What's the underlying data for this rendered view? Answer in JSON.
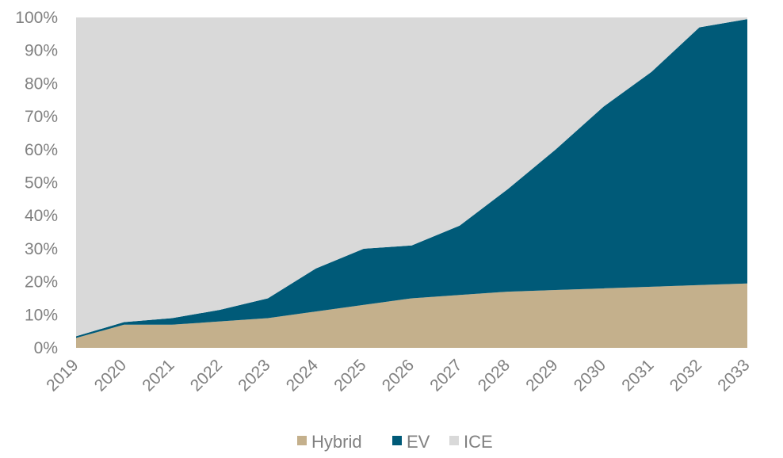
{
  "chart_data": {
    "type": "area",
    "stacked": true,
    "categories": [
      "2019",
      "2020",
      "2021",
      "2022",
      "2023",
      "2024",
      "2025",
      "2026",
      "2027",
      "2028",
      "2029",
      "2030",
      "2031",
      "2032",
      "2033"
    ],
    "series": [
      {
        "name": "Hybrid",
        "color": "#c4b08c",
        "values": [
          3,
          7,
          7,
          8,
          9,
          11,
          13,
          15,
          16,
          17,
          17.5,
          18,
          18.5,
          19,
          19.5
        ]
      },
      {
        "name": "EV",
        "color": "#005a78",
        "values": [
          0.5,
          0.8,
          2,
          3.5,
          6,
          13,
          17,
          16,
          21,
          31,
          42.5,
          55,
          65,
          78,
          80
        ]
      },
      {
        "name": "ICE",
        "color": "#d9d9d9",
        "values": [
          96.5,
          92.2,
          91,
          88.5,
          85,
          76,
          70,
          69,
          63,
          52,
          40,
          27,
          16.5,
          3,
          0.5
        ]
      }
    ],
    "y_ticks": [
      "0%",
      "10%",
      "20%",
      "30%",
      "40%",
      "50%",
      "60%",
      "70%",
      "80%",
      "90%",
      "100%"
    ],
    "ylim": [
      0,
      100
    ],
    "title": "",
    "xlabel": "",
    "ylabel": "",
    "grid": false,
    "legend_position": "bottom-center"
  }
}
